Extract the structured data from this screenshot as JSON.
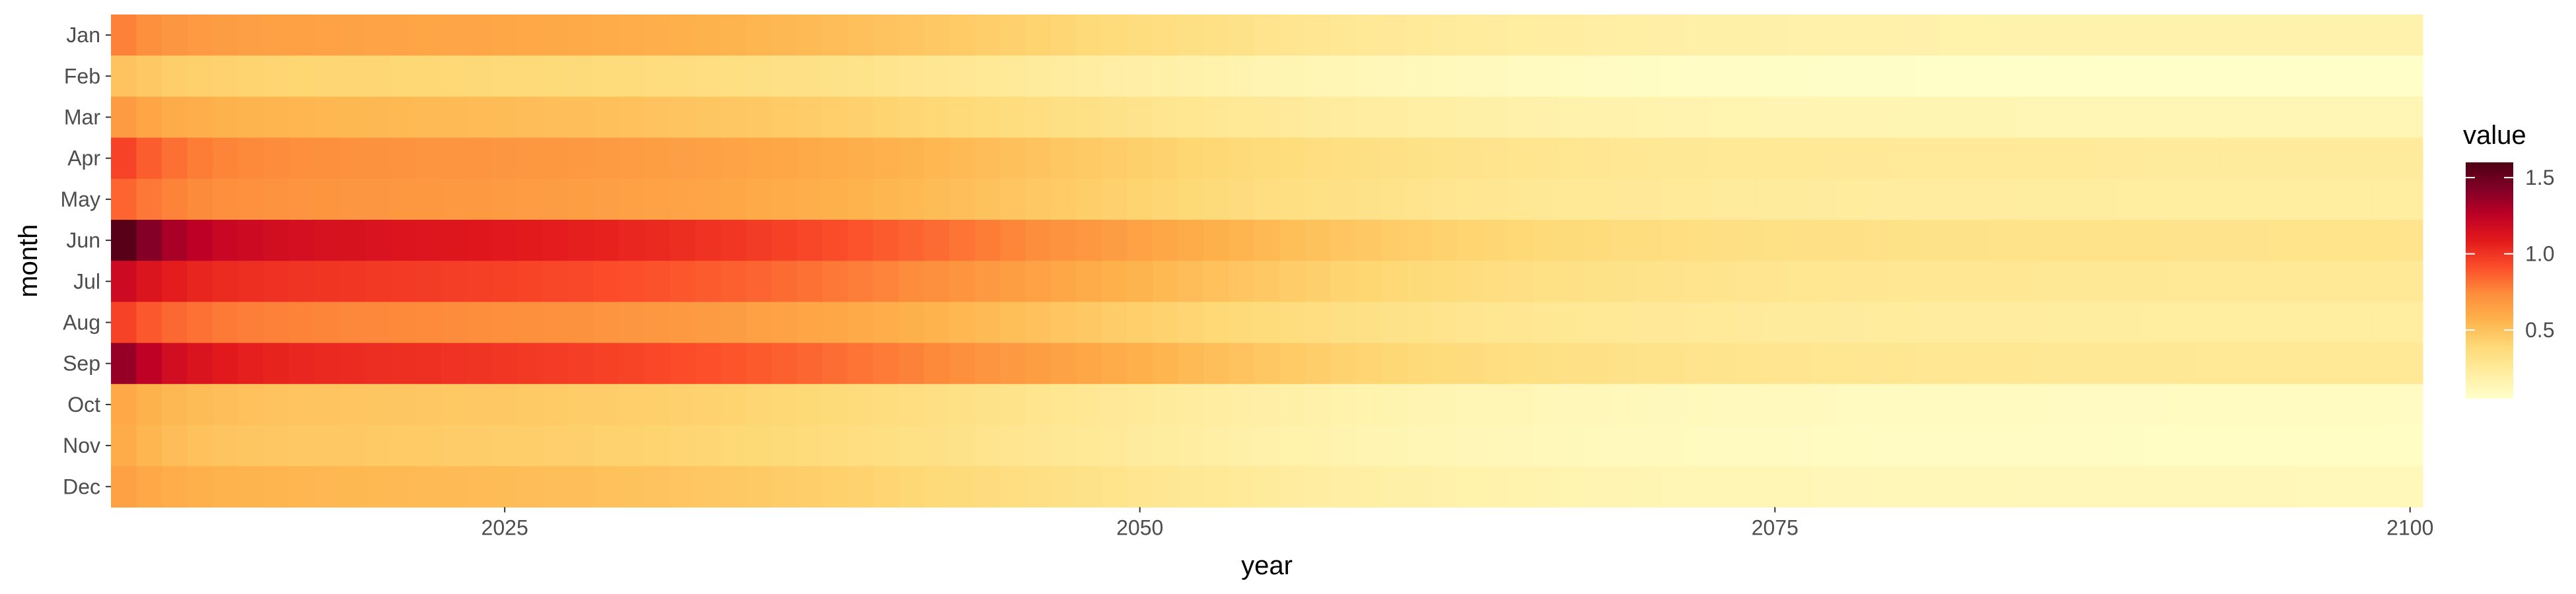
{
  "chart_data": {
    "type": "heatmap",
    "title": "",
    "xlabel": "year",
    "ylabel": "month",
    "x_range": [
      2010,
      2100
    ],
    "x_ticks": [
      2025,
      2050,
      2075,
      2100
    ],
    "months": [
      "Jan",
      "Feb",
      "Mar",
      "Apr",
      "May",
      "Jun",
      "Jul",
      "Aug",
      "Sep",
      "Oct",
      "Nov",
      "Dec"
    ],
    "month_profiles": {
      "Jan": {
        "start": 0.78,
        "plateau": 0.66,
        "end": 0.17
      },
      "Feb": {
        "start": 0.5,
        "plateau": 0.42,
        "end": 0.06
      },
      "Mar": {
        "start": 0.68,
        "plateau": 0.56,
        "end": 0.14
      },
      "Apr": {
        "start": 0.96,
        "plateau": 0.74,
        "end": 0.24
      },
      "May": {
        "start": 0.86,
        "plateau": 0.72,
        "end": 0.22
      },
      "Jun": {
        "start": 1.58,
        "plateau": 1.17,
        "end": 0.3
      },
      "Jul": {
        "start": 1.2,
        "plateau": 1.02,
        "end": 0.26
      },
      "Aug": {
        "start": 0.96,
        "plateau": 0.78,
        "end": 0.22
      },
      "Sep": {
        "start": 1.38,
        "plateau": 1.06,
        "end": 0.26
      },
      "Oct": {
        "start": 0.62,
        "plateau": 0.5,
        "end": 0.09
      },
      "Nov": {
        "start": 0.6,
        "plateau": 0.48,
        "end": 0.08
      },
      "Dec": {
        "start": 0.66,
        "plateau": 0.56,
        "end": 0.12
      }
    },
    "value_range": [
      0.05,
      1.6
    ],
    "legend": {
      "title": "value",
      "ticks": [
        0.5,
        1.0,
        1.5
      ],
      "tick_labels": [
        "0.5",
        "1.0",
        "1.5"
      ],
      "position": "right"
    },
    "colormap": [
      "#ffffcc",
      "#ffeda0",
      "#fed976",
      "#feb24c",
      "#fd8d3c",
      "#fc4e2a",
      "#e31a1c",
      "#bd0026",
      "#800026",
      "#4d0013"
    ],
    "grid": false
  }
}
